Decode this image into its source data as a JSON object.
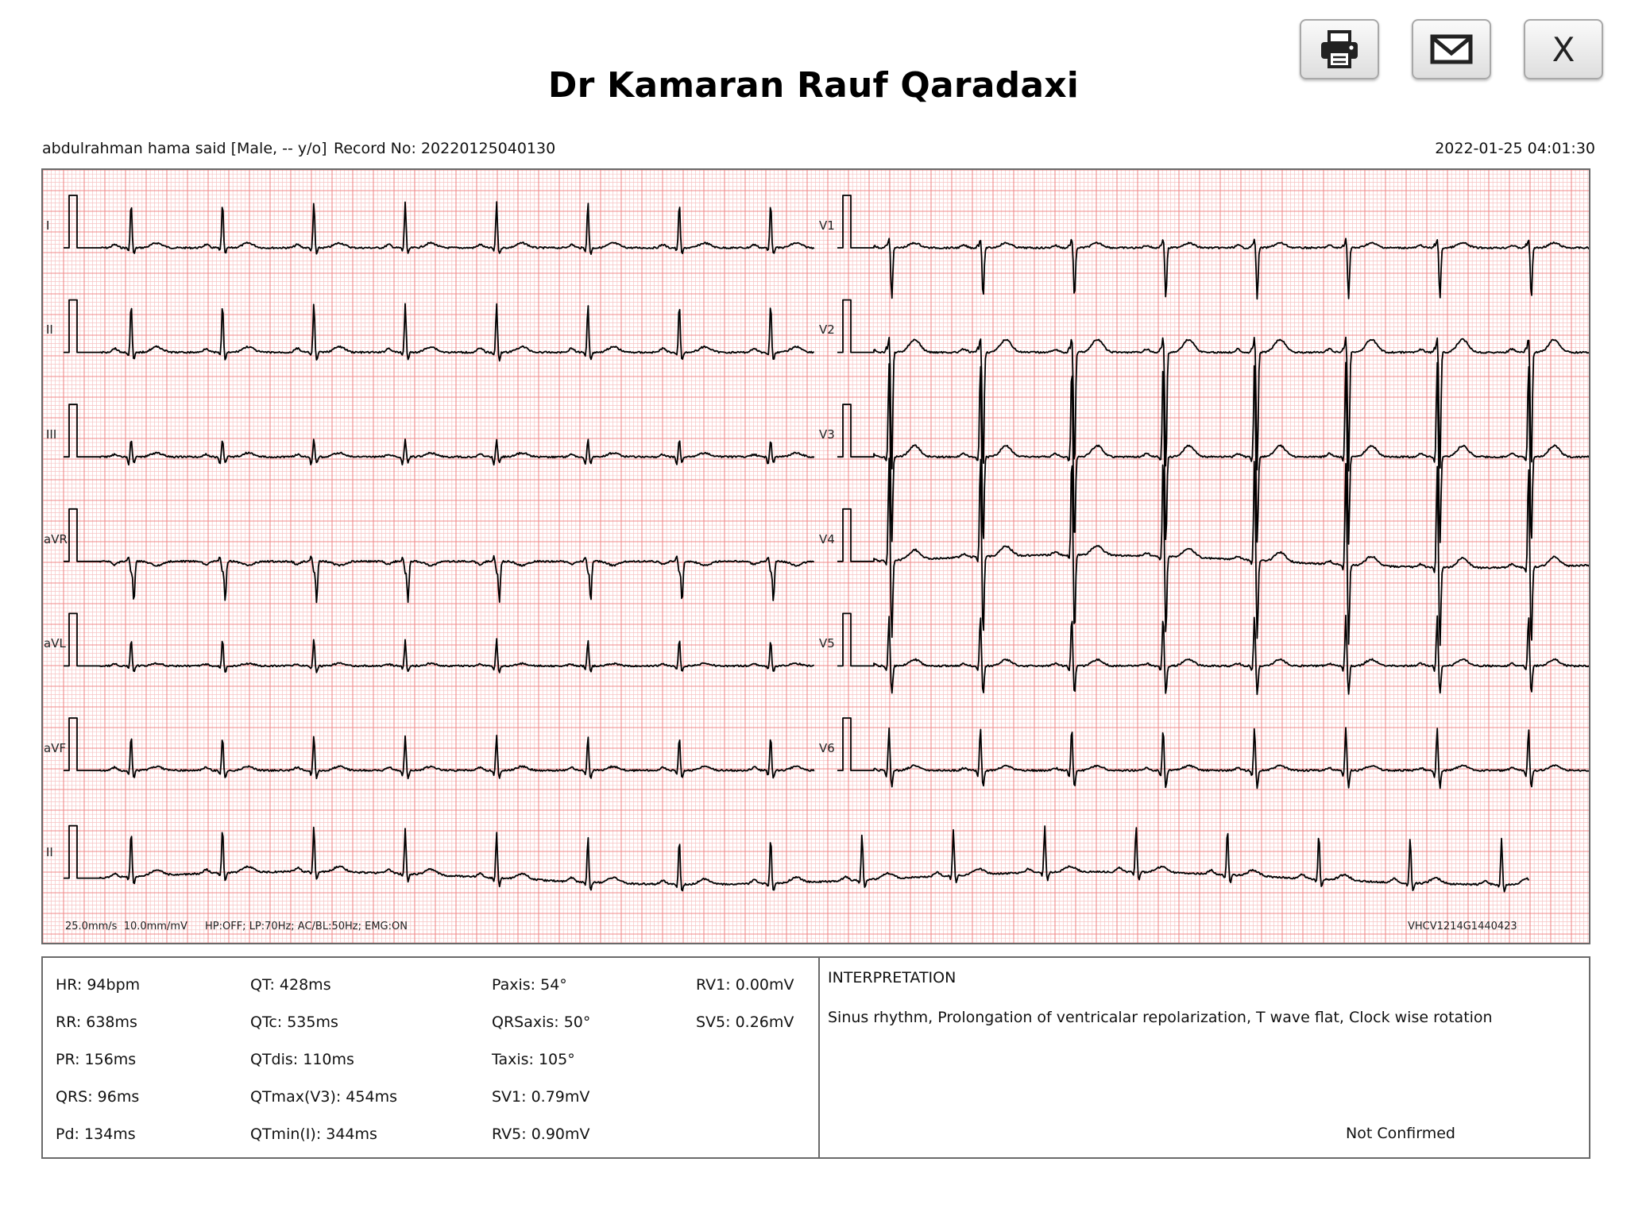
{
  "header": {
    "title": "Dr Kamaran Rauf Qaradaxi",
    "patient": "abdulrahman hama said [Male, -- y/o]",
    "record_no": "Record No: 20220125040130",
    "datetime": "2022-01-25 04:01:30",
    "close_label": "X"
  },
  "toolbar": {
    "print_icon": "printer-icon",
    "mail_icon": "envelope-icon"
  },
  "ecg": {
    "leads_left": [
      "I",
      "II",
      "III",
      "aVR",
      "aVL",
      "aVF"
    ],
    "leads_right": [
      "V1",
      "V2",
      "V3",
      "V4",
      "V5",
      "V6"
    ],
    "rhythm_lead": "II",
    "settings": "25.0mm/s  10.0mm/mV",
    "filters": "HP:OFF; LP:70Hz; AC/BL:50Hz; EMG:ON",
    "device_id": "VHCV1214G1440423",
    "grid_color": "#f08b8b",
    "minor_grid_color": "#f7c4c4",
    "trace_color": "#000000"
  },
  "measurements": {
    "col1": [
      "HR: 94bpm",
      "RR: 638ms",
      "PR: 156ms",
      "QRS: 96ms",
      "Pd: 134ms"
    ],
    "col2": [
      "QT: 428ms",
      "QTc: 535ms",
      "QTdis: 110ms",
      "QTmax(V3): 454ms",
      "QTmin(I): 344ms"
    ],
    "col3": [
      "Paxis: 54°",
      "QRSaxis: 50°",
      "Taxis: 105°",
      "SV1: 0.79mV",
      "RV5: 0.90mV"
    ],
    "col4": [
      "RV1: 0.00mV",
      "SV5: 0.26mV"
    ]
  },
  "interpretation": {
    "title": "INTERPRETATION",
    "text": "Sinus rhythm, Prolongation of ventricalar repolarization, T wave flat, Clock wise rotation",
    "status": "Not Confirmed"
  }
}
